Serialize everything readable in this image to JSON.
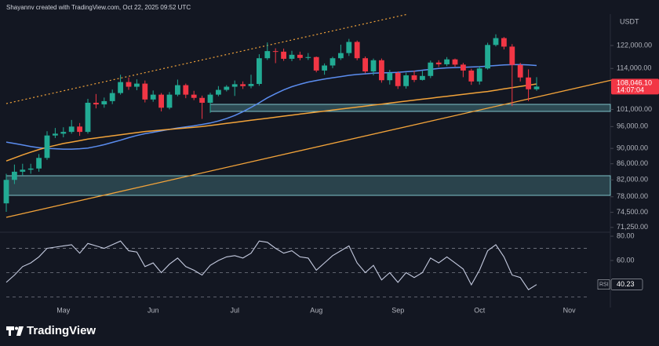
{
  "header": "Shayannv created with TradingView.com, Oct 22, 2025 09:52 UTC",
  "footer": "TradingView",
  "chart_data": {
    "type": "candlestick",
    "currency": "USDT",
    "categories": [
      null,
      null,
      null,
      null,
      null,
      null,
      null,
      "May",
      null,
      null,
      null,
      null,
      null,
      null,
      null,
      null,
      null,
      null,
      "Jun",
      null,
      null,
      null,
      null,
      null,
      null,
      null,
      null,
      null,
      "Jul",
      null,
      null,
      null,
      null,
      null,
      null,
      null,
      null,
      null,
      "Aug",
      null,
      null,
      null,
      null,
      null,
      null,
      null,
      null,
      null,
      "Sep",
      null,
      null,
      null,
      null,
      null,
      null,
      null,
      null,
      null,
      "Oct",
      null,
      null,
      null,
      null,
      null,
      null,
      null,
      null,
      null,
      null,
      "Nov",
      null,
      null
    ],
    "open": [
      76500,
      82000,
      84000,
      84500,
      84800,
      87500,
      93500,
      94000,
      94500,
      96000,
      94500,
      103000,
      102500,
      103500,
      106000,
      109500,
      108000,
      109000,
      104000,
      105500,
      101500,
      105500,
      108500,
      105500,
      104500,
      103000,
      105500,
      107000,
      108000,
      108800,
      108200,
      108900,
      117500,
      120000,
      119800,
      117300,
      118700,
      117600,
      117900,
      113300,
      115000,
      117500,
      119300,
      123300,
      117500,
      113000,
      116800,
      110100,
      112500,
      108200,
      111700,
      110200,
      111500,
      116000,
      115400,
      117100,
      115300,
      113300,
      109700,
      114000,
      122200,
      124700,
      121600,
      115200,
      111000,
      107200,
      null,
      null,
      null,
      null,
      null,
      null
    ],
    "high": [
      83500,
      85800,
      86000,
      86000,
      88500,
      94700,
      95600,
      95800,
      97900,
      97000,
      104200,
      105700,
      104600,
      107100,
      111900,
      111000,
      110400,
      110000,
      106800,
      106000,
      106300,
      110300,
      109000,
      106700,
      105200,
      106100,
      108200,
      108500,
      110000,
      109700,
      111900,
      118900,
      123100,
      121000,
      120900,
      120100,
      119800,
      119300,
      118100,
      115700,
      118000,
      122300,
      124400,
      123800,
      118100,
      117400,
      117400,
      113500,
      113000,
      112600,
      113300,
      113200,
      116700,
      116800,
      117900,
      117400,
      115900,
      113900,
      114800,
      123000,
      126100,
      125100,
      122500,
      115900,
      113700,
      111100,
      null,
      null,
      null,
      null,
      null,
      null
    ],
    "low": [
      74600,
      81000,
      83000,
      83500,
      84000,
      87000,
      92800,
      93000,
      94000,
      93400,
      94000,
      101300,
      101500,
      102600,
      105500,
      107000,
      106900,
      103100,
      103300,
      100400,
      101000,
      105000,
      104400,
      103800,
      98200,
      100000,
      105000,
      106500,
      105100,
      107300,
      107500,
      108300,
      116900,
      115800,
      116600,
      116500,
      116800,
      116900,
      112700,
      111900,
      114100,
      116900,
      118300,
      116800,
      112400,
      111700,
      109300,
      108700,
      107300,
      107400,
      109500,
      110000,
      110800,
      114500,
      114800,
      114600,
      111100,
      108600,
      108700,
      113600,
      121700,
      120600,
      102000,
      109700,
      103500,
      106700,
      null,
      null,
      null,
      null,
      null,
      null
    ],
    "close": [
      82000,
      84000,
      84500,
      84800,
      87500,
      93500,
      94000,
      94500,
      96000,
      94500,
      103000,
      102500,
      103500,
      106000,
      109500,
      108000,
      109000,
      104000,
      105500,
      101500,
      105500,
      108500,
      105500,
      104500,
      103000,
      105500,
      107000,
      108000,
      108800,
      108200,
      108900,
      117500,
      120000,
      119800,
      117300,
      118700,
      117600,
      117900,
      113300,
      115000,
      117500,
      119300,
      123300,
      117500,
      113000,
      116800,
      110100,
      112500,
      108200,
      111700,
      110200,
      111500,
      116000,
      115400,
      117100,
      115300,
      113300,
      109700,
      114000,
      122200,
      124700,
      121600,
      115200,
      111000,
      107200,
      108046.1,
      null,
      null,
      null,
      null,
      null,
      null
    ],
    "color_up": "#22ab94",
    "color_down": "#f23645",
    "log_scale": true,
    "ylim": [
      70400,
      134800
    ],
    "yticks": [
      {
        "value": 122000,
        "label": "122,000.00"
      },
      {
        "value": 114000,
        "label": "114,000.00"
      },
      {
        "value": 101000,
        "label": "101,000.00"
      },
      {
        "value": 96000,
        "label": "96,000.00"
      },
      {
        "value": 90000,
        "label": "90,000.00"
      },
      {
        "value": 86000,
        "label": "86,000.00"
      },
      {
        "value": 82000,
        "label": "82,000.00"
      },
      {
        "value": 78000,
        "label": "78,000.00"
      },
      {
        "value": 74500,
        "label": "74,500.00"
      },
      {
        "value": 71250,
        "label": "71,250.00"
      }
    ],
    "last_price_label": "108,046.10",
    "countdown": "14:07:04",
    "moving_averages": [
      {
        "color": "#5b8def",
        "values": [
          91700,
          91300,
          90900,
          90500,
          90200,
          90000,
          89900,
          89800,
          89800,
          89900,
          90100,
          90500,
          91000,
          91600,
          92200,
          92900,
          93500,
          94000,
          94400,
          94800,
          95200,
          95600,
          95900,
          96200,
          96600,
          97000,
          97600,
          98300,
          99200,
          100300,
          101600,
          103000,
          104500,
          105800,
          107000,
          108000,
          108800,
          109500,
          110000,
          110500,
          110900,
          111300,
          111700,
          112000,
          112200,
          112400,
          112500,
          112600,
          112700,
          112900,
          113100,
          113400,
          113700,
          114000,
          114200,
          114300,
          114400,
          114500,
          114600,
          114800,
          115000,
          115200,
          115300,
          115300,
          115200,
          115000,
          null,
          null,
          null,
          null,
          null,
          null
        ]
      },
      {
        "color": "#f2a33a",
        "values": [
          86700,
          87500,
          88300,
          89000,
          89700,
          90300,
          90800,
          91300,
          91700,
          92100,
          92500,
          92800,
          93100,
          93400,
          93700,
          94000,
          94300,
          94600,
          94800,
          95000,
          95200,
          95400,
          95600,
          95800,
          96000,
          96300,
          96600,
          96900,
          97200,
          97500,
          97800,
          98100,
          98400,
          98700,
          99000,
          99300,
          99600,
          99900,
          100200,
          100500,
          100800,
          101100,
          101400,
          101700,
          102000,
          102300,
          102600,
          102900,
          103200,
          103500,
          103800,
          104100,
          104400,
          104700,
          105000,
          105300,
          105600,
          105900,
          106200,
          106500,
          106900,
          107300,
          107700,
          108100,
          108500,
          108900,
          null,
          null,
          null,
          null,
          null,
          null
        ]
      }
    ],
    "rsi": {
      "name": "RSI",
      "color": "#c5cbe0",
      "values": [
        42,
        48,
        55,
        58,
        63,
        70,
        71,
        72,
        73,
        66,
        74,
        72,
        70,
        73,
        76,
        68,
        67,
        55,
        58,
        50,
        57,
        62,
        55,
        52,
        48,
        56,
        60,
        63,
        64,
        62,
        66,
        76,
        75,
        70,
        66,
        68,
        63,
        62,
        52,
        58,
        64,
        68,
        72,
        58,
        50,
        56,
        44,
        50,
        42,
        50,
        46,
        50,
        62,
        58,
        63,
        58,
        53,
        40,
        52,
        68,
        73,
        63,
        48,
        46,
        36,
        40.23,
        null,
        null,
        null,
        null,
        null,
        null
      ],
      "ylim": [
        22.6,
        83.9
      ],
      "yticks": [
        {
          "value": 80,
          "label": "80.00"
        },
        {
          "value": 60,
          "label": "60.00"
        }
      ],
      "levels": [
        70,
        50,
        30
      ]
    }
  }
}
